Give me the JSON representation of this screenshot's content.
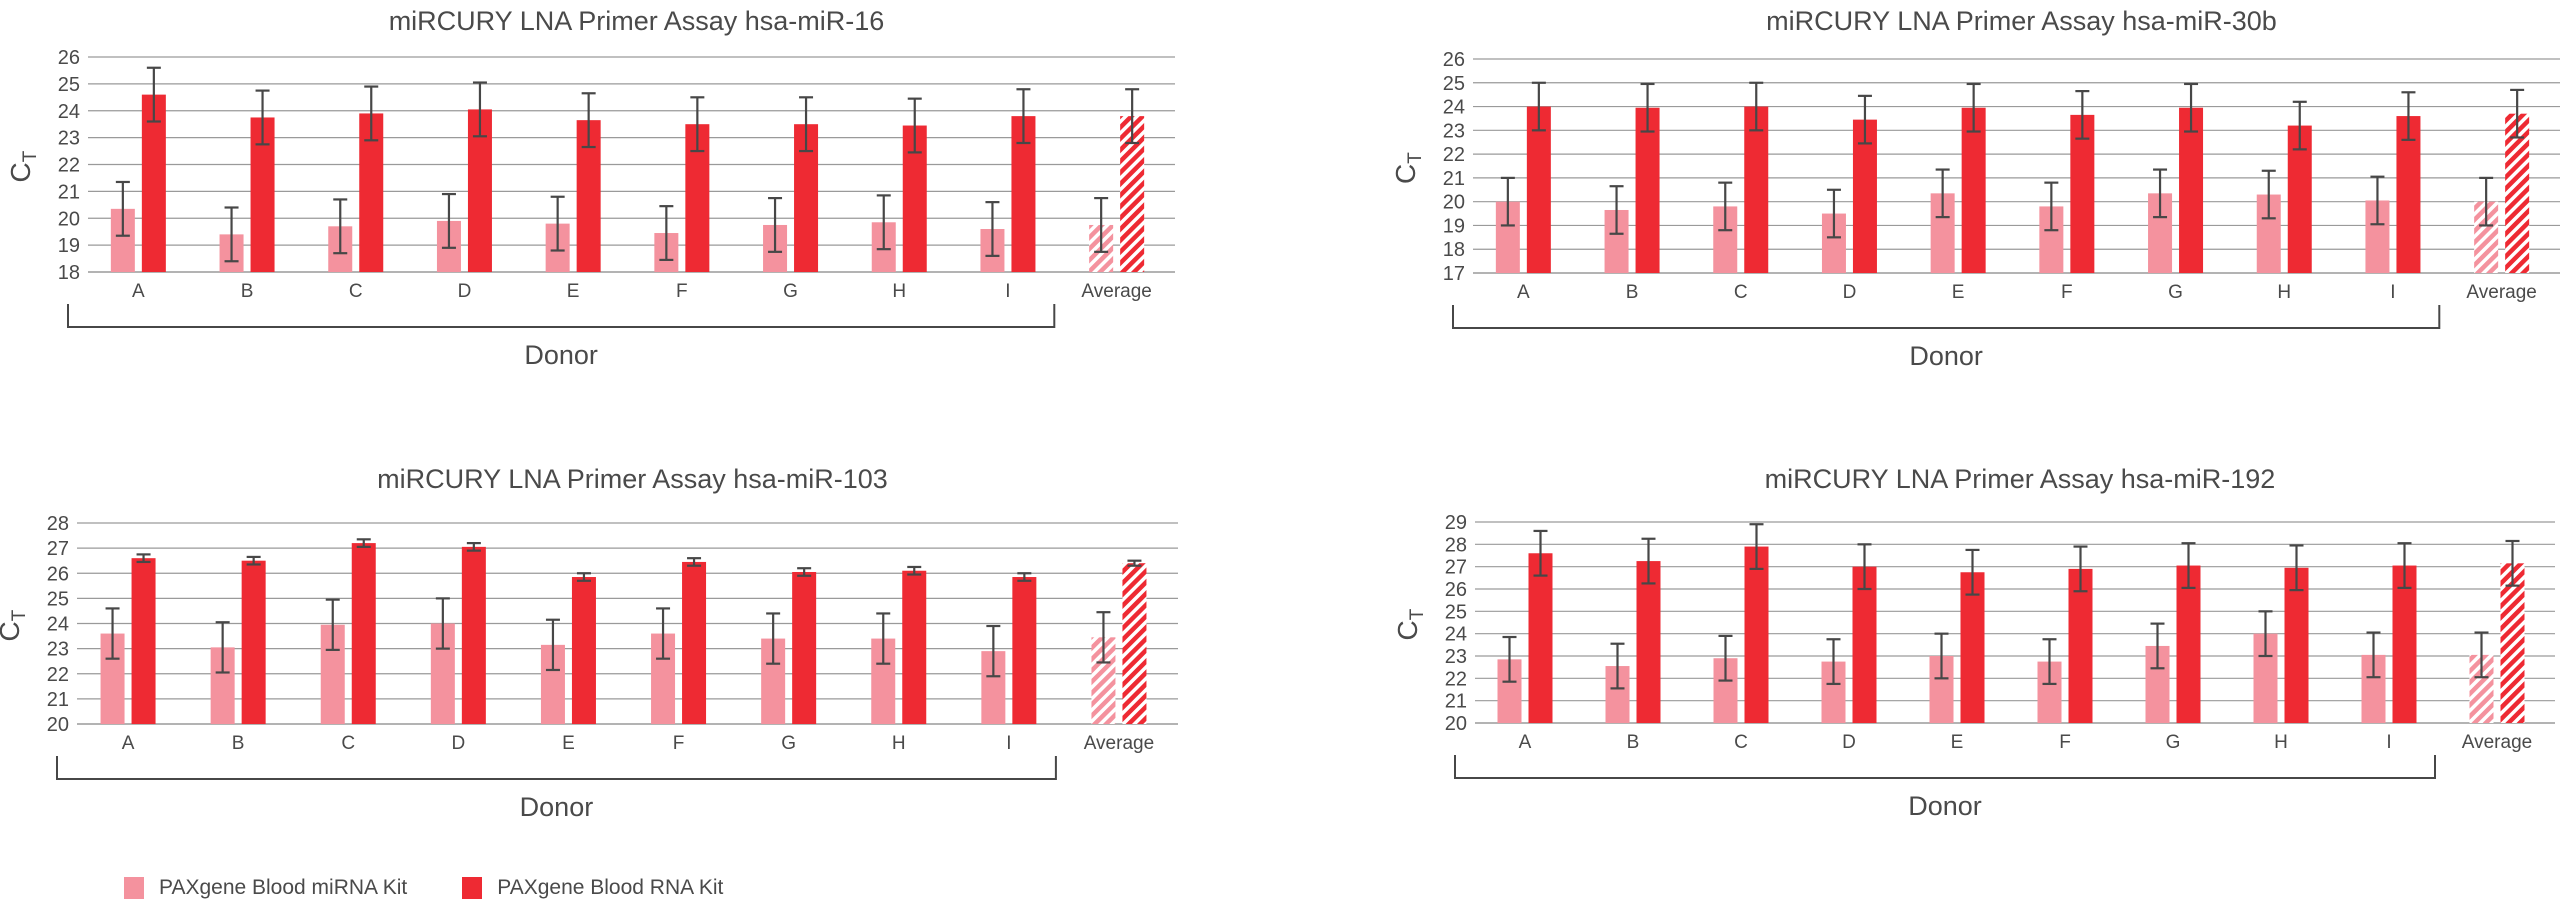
{
  "colors": {
    "mirna_kit": "#f4929e",
    "rna_kit": "#ee2a33",
    "error_bar": "#474747",
    "grid": "#9a9a9a",
    "text": "#4a4a4a"
  },
  "legend": [
    {
      "label": "PAXgene Blood miRNA Kit",
      "color": "#f4929e"
    },
    {
      "label": "PAXgene Blood RNA Kit",
      "color": "#ee2a33"
    }
  ],
  "chart_data": [
    {
      "type": "bar",
      "title": "miRCURY LNA Primer Assay hsa-miR-16",
      "ylabel": "C",
      "ylabel_subscript": "T",
      "xlabel": "Donor",
      "ylim": [
        18,
        26
      ],
      "yticks": [
        18,
        19,
        20,
        21,
        22,
        23,
        24,
        25,
        26
      ],
      "grid": true,
      "categories": [
        "A",
        "B",
        "C",
        "D",
        "E",
        "F",
        "G",
        "H",
        "I",
        "Average"
      ],
      "hatched_categories": [
        "Average"
      ],
      "series": [
        {
          "name": "PAXgene Blood miRNA Kit",
          "values": [
            20.35,
            19.4,
            19.7,
            19.9,
            19.8,
            19.45,
            19.75,
            19.85,
            19.6,
            19.75
          ],
          "errors": [
            1.0,
            1.0,
            1.0,
            1.0,
            1.0,
            1.0,
            1.0,
            1.0,
            1.0,
            1.0
          ]
        },
        {
          "name": "PAXgene Blood RNA Kit",
          "values": [
            24.6,
            23.75,
            23.9,
            24.05,
            23.65,
            23.5,
            23.5,
            23.45,
            23.8,
            23.8
          ],
          "errors": [
            1.0,
            1.0,
            1.0,
            1.0,
            1.0,
            1.0,
            1.0,
            1.0,
            1.0,
            1.0
          ]
        }
      ]
    },
    {
      "type": "bar",
      "title": "miRCURY LNA Primer Assay hsa-miR-30b",
      "ylabel": "C",
      "ylabel_subscript": "T",
      "xlabel": "Donor",
      "ylim": [
        17,
        26
      ],
      "yticks": [
        17,
        18,
        19,
        20,
        21,
        22,
        23,
        24,
        25,
        26
      ],
      "grid": true,
      "categories": [
        "A",
        "B",
        "C",
        "D",
        "E",
        "F",
        "G",
        "H",
        "I",
        "Average"
      ],
      "hatched_categories": [
        "Average"
      ],
      "series": [
        {
          "name": "PAXgene Blood miRNA Kit",
          "values": [
            20.0,
            19.65,
            19.8,
            19.5,
            20.35,
            19.8,
            20.35,
            20.3,
            20.05,
            20.0
          ],
          "errors": [
            1.0,
            1.0,
            1.0,
            1.0,
            1.0,
            1.0,
            1.0,
            1.0,
            1.0,
            1.0
          ]
        },
        {
          "name": "PAXgene Blood RNA Kit",
          "values": [
            24.0,
            23.95,
            24.0,
            23.45,
            23.95,
            23.65,
            23.95,
            23.2,
            23.6,
            23.7
          ],
          "errors": [
            1.0,
            1.0,
            1.0,
            1.0,
            1.0,
            1.0,
            1.0,
            1.0,
            1.0,
            1.0
          ]
        }
      ]
    },
    {
      "type": "bar",
      "title": "miRCURY LNA Primer Assay hsa-miR-103",
      "ylabel": "C",
      "ylabel_subscript": "T",
      "xlabel": "Donor",
      "ylim": [
        20,
        28
      ],
      "yticks": [
        20,
        21,
        22,
        23,
        24,
        25,
        26,
        27,
        28
      ],
      "grid": true,
      "categories": [
        "A",
        "B",
        "C",
        "D",
        "E",
        "F",
        "G",
        "H",
        "I",
        "Average"
      ],
      "hatched_categories": [
        "Average"
      ],
      "series": [
        {
          "name": "PAXgene Blood miRNA Kit",
          "values": [
            23.6,
            23.05,
            23.95,
            24.0,
            23.15,
            23.6,
            23.4,
            23.4,
            22.9,
            23.45
          ],
          "errors": [
            1.0,
            1.0,
            1.0,
            1.0,
            1.0,
            1.0,
            1.0,
            1.0,
            1.0,
            1.0
          ]
        },
        {
          "name": "PAXgene Blood RNA Kit",
          "values": [
            26.6,
            26.5,
            27.2,
            27.05,
            25.85,
            26.45,
            26.05,
            26.1,
            25.85,
            26.4
          ],
          "errors": [
            0.15,
            0.15,
            0.15,
            0.15,
            0.15,
            0.15,
            0.15,
            0.15,
            0.15,
            0.1
          ]
        }
      ]
    },
    {
      "type": "bar",
      "title": "miRCURY LNA Primer Assay hsa-miR-192",
      "ylabel": "C",
      "ylabel_subscript": "T",
      "xlabel": "Donor",
      "ylim": [
        20,
        29
      ],
      "yticks": [
        20,
        21,
        22,
        23,
        24,
        25,
        26,
        27,
        28,
        29
      ],
      "grid": true,
      "categories": [
        "A",
        "B",
        "C",
        "D",
        "E",
        "F",
        "G",
        "H",
        "I",
        "Average"
      ],
      "hatched_categories": [
        "Average"
      ],
      "series": [
        {
          "name": "PAXgene Blood miRNA Kit",
          "values": [
            22.85,
            22.55,
            22.9,
            22.75,
            23.0,
            22.75,
            23.45,
            24.0,
            23.05,
            23.05
          ],
          "errors": [
            1.0,
            1.0,
            1.0,
            1.0,
            1.0,
            1.0,
            1.0,
            1.0,
            1.0,
            1.0
          ]
        },
        {
          "name": "PAXgene Blood RNA Kit",
          "values": [
            27.6,
            27.25,
            27.9,
            27.0,
            26.75,
            26.9,
            27.05,
            26.95,
            27.05,
            27.15
          ],
          "errors": [
            1.0,
            1.0,
            1.0,
            1.0,
            1.0,
            1.0,
            1.0,
            1.0,
            1.0,
            1.0
          ]
        }
      ]
    }
  ]
}
